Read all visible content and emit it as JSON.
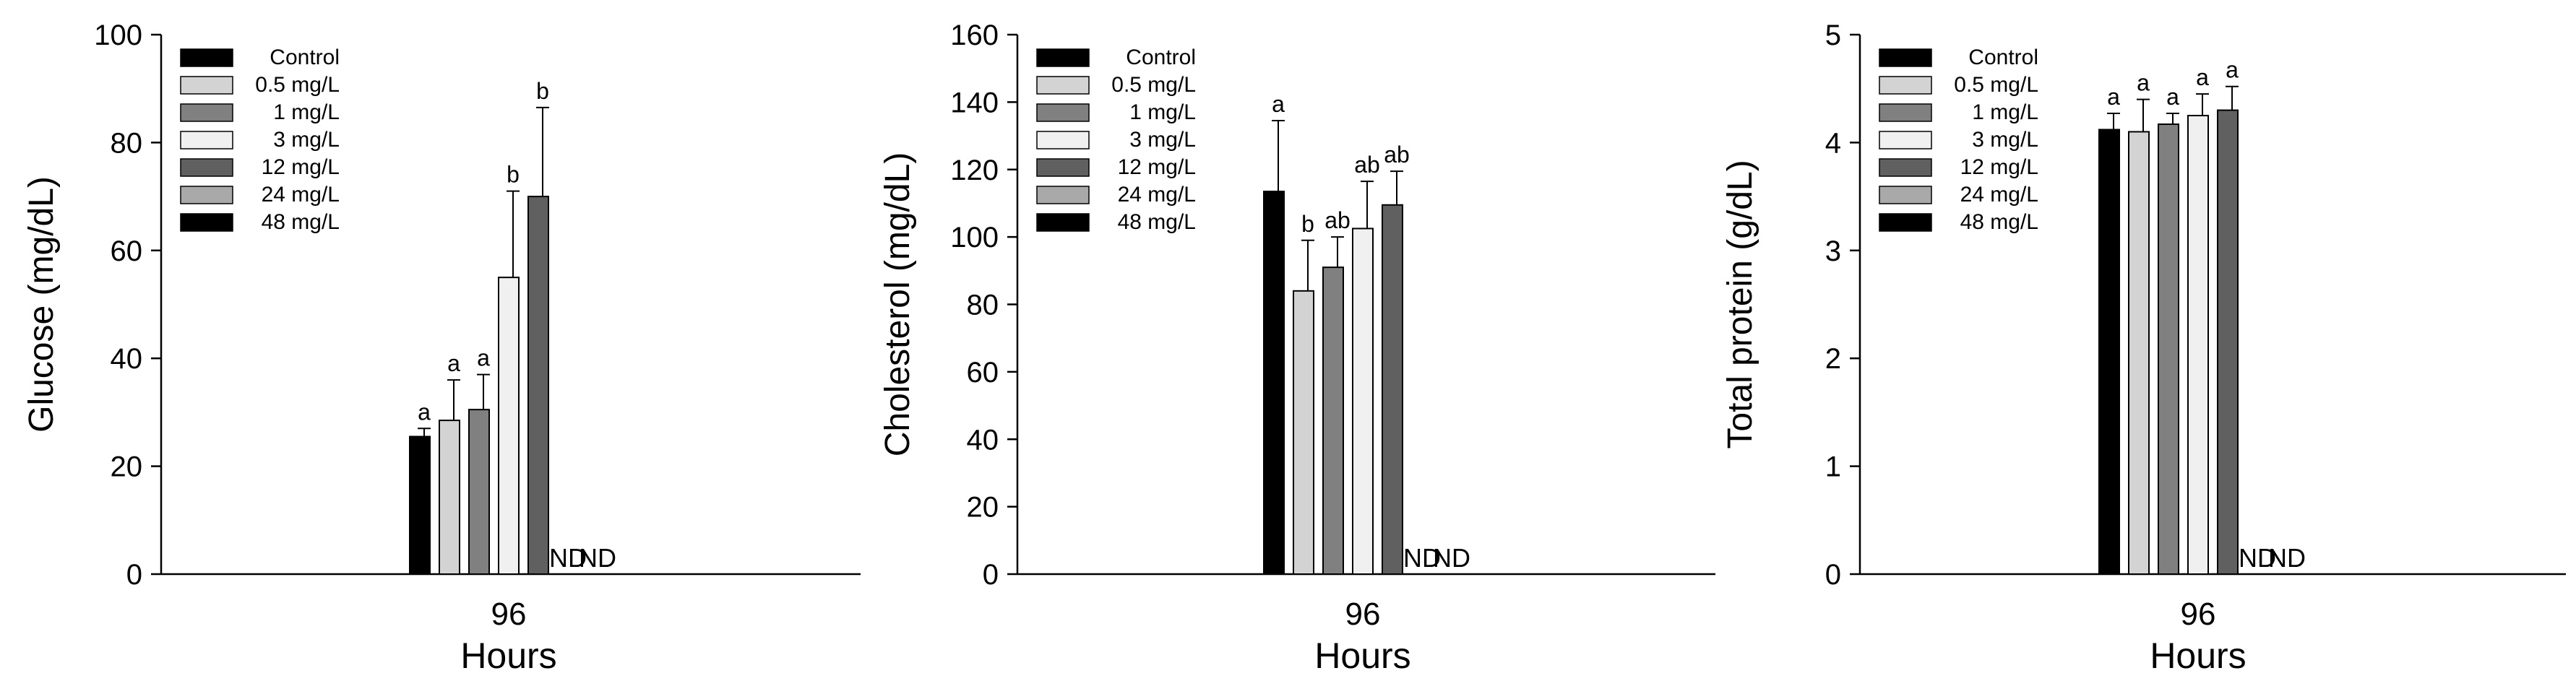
{
  "legend_labels": [
    "Control",
    "0.5 mg/L",
    "1 mg/L",
    "3 mg/L",
    "12 mg/L",
    "24 mg/L",
    "48 mg/L"
  ],
  "legend_colors": [
    "#000000",
    "#d3d3d3",
    "#808080",
    "#f0f0f0",
    "#606060",
    "#a9a9a9",
    "#000000"
  ],
  "chart_data": [
    {
      "type": "bar",
      "categories": [
        "96"
      ],
      "xlabel": "Hours",
      "ylabel": "Glucose (mg/dL)",
      "ylim": [
        0,
        100
      ],
      "yticks": [
        0,
        20,
        40,
        60,
        80,
        100
      ],
      "legend_position": "top-left",
      "series": [
        {
          "name": "Control",
          "values": [
            25.5
          ],
          "error": [
            1.5
          ],
          "label": "a"
        },
        {
          "name": "0.5 mg/L",
          "values": [
            28.5
          ],
          "error": [
            7.5
          ],
          "label": "a"
        },
        {
          "name": "1 mg/L",
          "values": [
            30.5
          ],
          "error": [
            6.5
          ],
          "label": "a"
        },
        {
          "name": "3 mg/L",
          "values": [
            55.0
          ],
          "error": [
            16.0
          ],
          "label": "b"
        },
        {
          "name": "12 mg/L",
          "values": [
            70.0
          ],
          "error": [
            16.5
          ],
          "label": "b"
        },
        {
          "name": "24 mg/L",
          "values": [
            null
          ],
          "error": [
            null
          ],
          "label": "ND"
        },
        {
          "name": "48 mg/L",
          "values": [
            null
          ],
          "error": [
            null
          ],
          "label": "ND"
        }
      ]
    },
    {
      "type": "bar",
      "categories": [
        "96"
      ],
      "xlabel": "Hours",
      "ylabel": "Cholesterol (mg/dL)",
      "ylim": [
        0,
        160
      ],
      "yticks": [
        0,
        20,
        40,
        60,
        80,
        100,
        120,
        140,
        160
      ],
      "legend_position": "top-left",
      "series": [
        {
          "name": "Control",
          "values": [
            113.5
          ],
          "error": [
            21.0
          ],
          "label": "a"
        },
        {
          "name": "0.5 mg/L",
          "values": [
            84.0
          ],
          "error": [
            15.0
          ],
          "label": "b"
        },
        {
          "name": "1 mg/L",
          "values": [
            91.0
          ],
          "error": [
            9.0
          ],
          "label": "ab"
        },
        {
          "name": "3 mg/L",
          "values": [
            102.5
          ],
          "error": [
            14.0
          ],
          "label": "ab"
        },
        {
          "name": "12 mg/L",
          "values": [
            109.5
          ],
          "error": [
            10.0
          ],
          "label": "ab"
        },
        {
          "name": "24 mg/L",
          "values": [
            null
          ],
          "error": [
            null
          ],
          "label": "ND"
        },
        {
          "name": "48 mg/L",
          "values": [
            null
          ],
          "error": [
            null
          ],
          "label": "ND"
        }
      ]
    },
    {
      "type": "bar",
      "categories": [
        "96"
      ],
      "xlabel": "Hours",
      "ylabel": "Total protein (g/dL)",
      "ylim": [
        0,
        5
      ],
      "yticks": [
        0,
        1,
        2,
        3,
        4,
        5
      ],
      "legend_position": "top-left",
      "series": [
        {
          "name": "Control",
          "values": [
            4.12
          ],
          "error": [
            0.15
          ],
          "label": "a"
        },
        {
          "name": "0.5 mg/L",
          "values": [
            4.1
          ],
          "error": [
            0.3
          ],
          "label": "a"
        },
        {
          "name": "1 mg/L",
          "values": [
            4.17
          ],
          "error": [
            0.1
          ],
          "label": "a"
        },
        {
          "name": "3 mg/L",
          "values": [
            4.25
          ],
          "error": [
            0.2
          ],
          "label": "a"
        },
        {
          "name": "12 mg/L",
          "values": [
            4.3
          ],
          "error": [
            0.22
          ],
          "label": "a"
        },
        {
          "name": "24 mg/L",
          "values": [
            null
          ],
          "error": [
            null
          ],
          "label": "ND"
        },
        {
          "name": "48 mg/L",
          "values": [
            null
          ],
          "error": [
            null
          ],
          "label": "ND"
        }
      ]
    }
  ]
}
